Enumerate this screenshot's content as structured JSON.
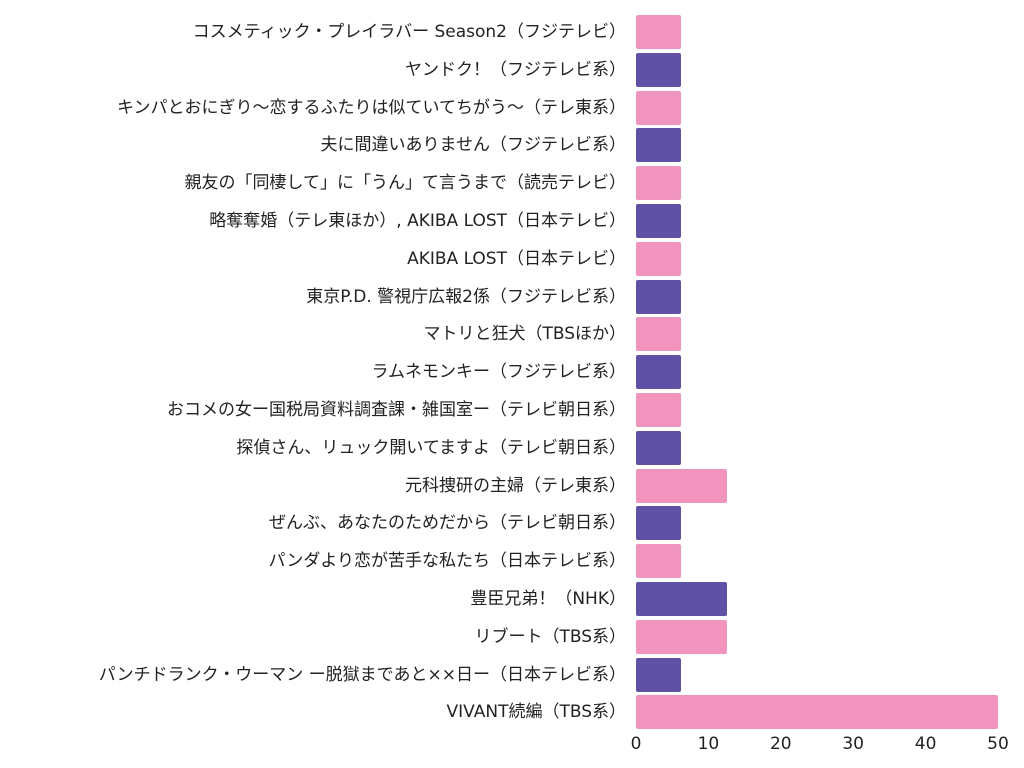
{
  "chart_data": {
    "type": "bar",
    "orientation": "horizontal",
    "title": "",
    "xlabel": "",
    "ylabel": "",
    "xlim": [
      0,
      50
    ],
    "xticks": [
      0,
      10,
      20,
      30,
      40,
      50
    ],
    "grid": false,
    "legend": null,
    "colors": [
      "#f094be",
      "#5f52a6"
    ],
    "categories": [
      "コスメティック・プレイラバー Season2（フジテレビ）",
      "ヤンドク！（フジテレビ系）",
      "キンパとおにぎり～恋するふたりは似ていてちがう～（テレ東系）",
      "夫に間違いありません（フジテレビ系）",
      "親友の「同棲して」に「うん」て言うまで（読売テレビ）",
      "略奪奪婚（テレ東ほか）, AKIBA LOST（日本テレビ）",
      "AKIBA LOST（日本テレビ）",
      "東京P.D. 警視庁広報2係（フジテレビ系）",
      "マトリと狂犬（TBSほか）",
      "ラムネモンキー（フジテレビ系）",
      "おコメの女ー国税局資料調査課・雑国室ー（テレビ朝日系）",
      "探偵さん、リュック開いてますよ（テレビ朝日系）",
      "元科捜研の主婦（テレ東系）",
      "ぜんぶ、あなたのためだから（テレビ朝日系）",
      "パンダより恋が苦手な私たち（日本テレビ系）",
      "豊臣兄弟！（NHK）",
      "リブート（TBS系）",
      "パンチドランク・ウーマン ー脱獄まであと××日ー（日本テレビ系）",
      "VIVANT続編（TBS系）"
    ],
    "values": [
      6.25,
      6.25,
      6.25,
      6.25,
      6.25,
      6.25,
      6.25,
      6.25,
      6.25,
      6.25,
      6.25,
      6.25,
      12.5,
      6.25,
      6.25,
      12.5,
      12.5,
      6.25,
      50
    ]
  }
}
